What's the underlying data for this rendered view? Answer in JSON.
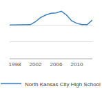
{
  "chart_data": {
    "type": "line",
    "x": [
      1997,
      1998,
      1999,
      2000,
      2001,
      2002,
      2003,
      2004,
      2005,
      2006,
      2007,
      2008,
      2009,
      2010,
      2011,
      2012,
      2013
    ],
    "series": [
      {
        "name": "North Kansas City High School",
        "color": "#3a7fc1",
        "values": [
          2.0,
          2.0,
          2.0,
          2.0,
          2.02,
          2.2,
          2.45,
          2.6,
          2.7,
          2.72,
          2.82,
          2.6,
          2.25,
          2.1,
          2.02,
          2.02,
          2.3
        ]
      }
    ],
    "xlim": [
      1997,
      2013
    ],
    "xticks": [
      1998,
      2002,
      2006,
      2010
    ],
    "ylim": [
      0,
      3
    ],
    "yticks": [
      0,
      1,
      2,
      3
    ],
    "grid": true,
    "legend": "bottom",
    "tick_labels": "x"
  }
}
